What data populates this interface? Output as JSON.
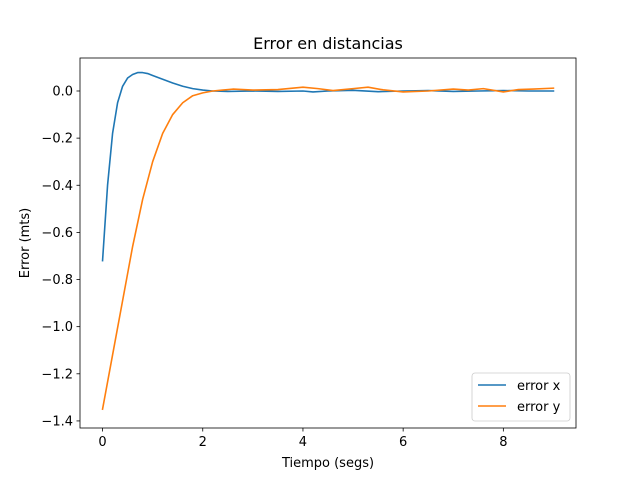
{
  "chart_data": {
    "type": "line",
    "title": "Error en distancias",
    "xlabel": "Tiempo (segs)",
    "ylabel": "Error (mts)",
    "xlim": [
      -0.45,
      9.45
    ],
    "ylim": [
      -1.43,
      0.14
    ],
    "xticks": [
      0,
      2,
      4,
      6,
      8
    ],
    "yticks": [
      -1.4,
      -1.2,
      -1.0,
      -0.8,
      -0.6,
      -0.4,
      -0.2,
      0.0
    ],
    "xtick_labels": [
      "0",
      "2",
      "4",
      "6",
      "8"
    ],
    "ytick_labels": [
      "−1.4",
      "−1.2",
      "−1.0",
      "−0.8",
      "−0.6",
      "−0.4",
      "−0.2",
      "0.0"
    ],
    "grid": false,
    "legend_position": "lower-right",
    "series": [
      {
        "name": "error x",
        "color": "#1f77b4",
        "x": [
          0,
          0.1,
          0.2,
          0.3,
          0.4,
          0.5,
          0.6,
          0.7,
          0.8,
          0.9,
          1.0,
          1.2,
          1.4,
          1.6,
          1.8,
          2.0,
          2.2,
          2.5,
          3.0,
          3.5,
          4.0,
          4.2,
          4.5,
          5.0,
          5.5,
          6.0,
          6.5,
          7.0,
          7.5,
          8.0,
          8.5,
          9.0
        ],
        "values": [
          -0.72,
          -0.4,
          -0.18,
          -0.05,
          0.02,
          0.055,
          0.07,
          0.078,
          0.078,
          0.074,
          0.066,
          0.05,
          0.034,
          0.02,
          0.01,
          0.004,
          0.0,
          -0.002,
          0.0,
          -0.002,
          0.0,
          -0.004,
          0.0,
          0.003,
          -0.003,
          0.0,
          0.002,
          -0.002,
          0.0,
          0.002,
          0.0,
          0.0
        ]
      },
      {
        "name": "error y",
        "color": "#ff7f0e",
        "x": [
          0,
          0.2,
          0.4,
          0.6,
          0.8,
          1.0,
          1.2,
          1.4,
          1.6,
          1.8,
          2.0,
          2.2,
          2.4,
          2.6,
          2.8,
          3.0,
          3.5,
          4.0,
          4.3,
          4.6,
          5.0,
          5.3,
          5.6,
          6.0,
          6.5,
          7.0,
          7.3,
          7.6,
          8.0,
          8.3,
          8.6,
          9.0
        ],
        "values": [
          -1.35,
          -1.12,
          -0.89,
          -0.66,
          -0.46,
          -0.3,
          -0.18,
          -0.1,
          -0.05,
          -0.02,
          -0.008,
          0.0,
          0.004,
          0.008,
          0.006,
          0.004,
          0.006,
          0.016,
          0.01,
          0.002,
          0.01,
          0.016,
          0.005,
          -0.004,
          0.0,
          0.008,
          0.004,
          0.01,
          -0.004,
          0.006,
          0.008,
          0.012
        ]
      }
    ]
  }
}
